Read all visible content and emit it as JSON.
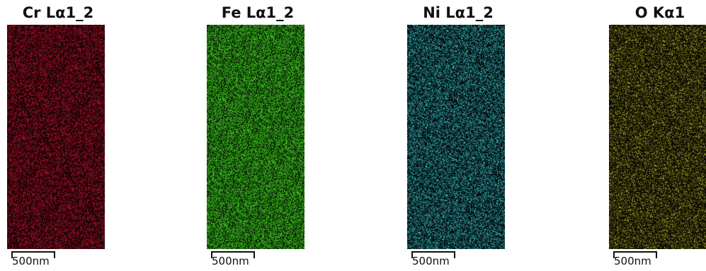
{
  "maps": [
    {
      "title": "Cr Lα1_2",
      "color": "#b3122a",
      "scale_label": "500nm"
    },
    {
      "title": "Fe Lα1_2",
      "color": "#3fd020",
      "scale_label": "500nm"
    },
    {
      "title": "Ni Lα1_2",
      "color": "#38c0c8",
      "scale_label": "500nm"
    },
    {
      "title": "O Kα1",
      "color": "#b8b52a",
      "scale_label": "500nm"
    }
  ]
}
